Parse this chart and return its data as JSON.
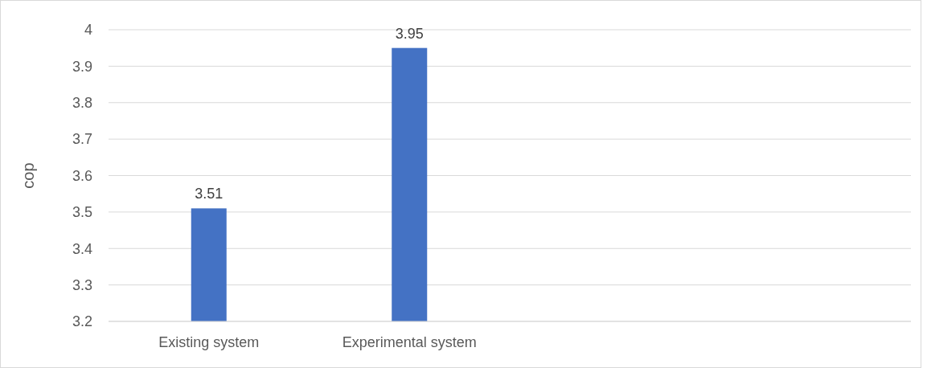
{
  "chart_data": {
    "type": "bar",
    "ylabel": "cop",
    "categories": [
      "Existing system",
      "Experimental system",
      null,
      null
    ],
    "values": [
      3.51,
      3.95,
      null,
      null
    ],
    "color": "#4472c4",
    "ylim": [
      3.2,
      4
    ],
    "yticks": [
      3.2,
      3.3,
      3.4,
      3.5,
      3.6,
      3.7,
      3.8,
      3.9,
      {
        "value": 4,
        "label": "4"
      }
    ],
    "grid": "y",
    "data_labels": true
  }
}
